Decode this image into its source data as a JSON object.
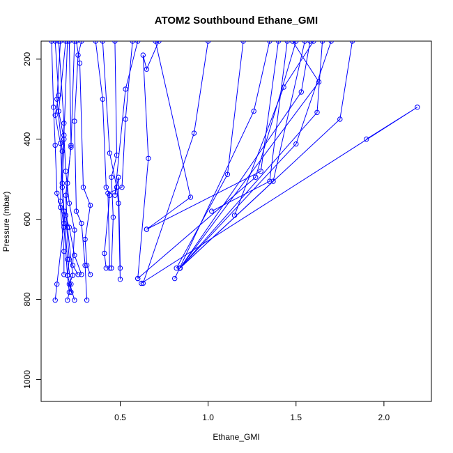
{
  "chart_data": {
    "type": "line",
    "title": "ATOM2 Southbound Ethane_GMI",
    "xlabel": "Ethane_GMI",
    "ylabel": "Pressure (mbar)",
    "xlim": [
      0.05,
      2.27
    ],
    "ylim": [
      1055,
      155
    ],
    "y_reversed": true,
    "x_ticks": [
      0.5,
      1.0,
      1.5,
      2.0
    ],
    "x_tick_labels": [
      "0.5",
      "1.0",
      "1.5",
      "2.0"
    ],
    "y_ticks": [
      200,
      400,
      600,
      800,
      1000
    ],
    "y_tick_labels": [
      "200",
      "400",
      "600",
      "800",
      "1000"
    ],
    "grid": false,
    "legend": "none",
    "color": "#0000ff",
    "series": [
      {
        "x": [
          0.13,
          0.14,
          0.18,
          0.16,
          0.13,
          0.15,
          0.13
        ],
        "y": [
          802,
          762,
          610,
          410,
          340,
          290,
          155
        ]
      },
      {
        "x": [
          0.2,
          0.22,
          0.2,
          0.17,
          0.18,
          0.15,
          0.19
        ],
        "y": [
          802,
          762,
          700,
          520,
          400,
          330,
          155
        ]
      },
      {
        "x": [
          0.24,
          0.2,
          0.18,
          0.16,
          0.17,
          0.14,
          0.16
        ],
        "y": [
          802,
          740,
          620,
          555,
          430,
          300,
          155
        ]
      },
      {
        "x": [
          0.31,
          0.3,
          0.28,
          0.25,
          0.24,
          0.26,
          0.28
        ],
        "y": [
          802,
          715,
          610,
          580,
          355,
          190,
          155
        ]
      },
      {
        "x": [
          0.21,
          0.2,
          0.21,
          0.19,
          0.2,
          0.22,
          0.21
        ],
        "y": [
          782,
          740,
          700,
          590,
          510,
          415,
          155
        ]
      },
      {
        "x": [
          0.22,
          0.21,
          0.23,
          0.2,
          0.19,
          0.22,
          0.24
        ],
        "y": [
          782,
          762,
          740,
          620,
          540,
          420,
          155
        ]
      },
      {
        "x": [
          0.26,
          0.23,
          0.24,
          0.21,
          0.19,
          0.18,
          0.2
        ],
        "y": [
          738,
          715,
          627,
          560,
          480,
          390,
          155
        ]
      },
      {
        "x": [
          0.33,
          0.31,
          0.3,
          0.33,
          0.29,
          0.27,
          0.25
        ],
        "y": [
          738,
          715,
          650,
          565,
          520,
          210,
          155
        ]
      },
      {
        "x": [
          0.28,
          0.24,
          0.21,
          0.18,
          0.17,
          0.18,
          0.15
        ],
        "y": [
          738,
          690,
          620,
          580,
          510,
          360,
          155
        ]
      },
      {
        "x": [
          0.18,
          0.18,
          0.16,
          0.14,
          0.13,
          0.12,
          0.11
        ],
        "y": [
          738,
          680,
          570,
          535,
          415,
          320,
          155
        ]
      },
      {
        "x": [
          0.42,
          0.41,
          0.44,
          0.42,
          0.4,
          0.36
        ],
        "y": [
          722,
          685,
          540,
          520,
          300,
          155
        ]
      },
      {
        "x": [
          0.45,
          0.46,
          0.45,
          0.48,
          0.47
        ],
        "y": [
          722,
          595,
          495,
          440,
          155
        ]
      },
      {
        "x": [
          0.5,
          0.49,
          0.48,
          0.44,
          0.4
        ],
        "y": [
          750,
          560,
          520,
          435,
          155
        ]
      },
      {
        "x": [
          0.44,
          0.43,
          0.51,
          0.53,
          0.57
        ],
        "y": [
          722,
          535,
          520,
          350,
          155
        ]
      },
      {
        "x": [
          0.5,
          0.49,
          0.47,
          0.53,
          0.6
        ],
        "y": [
          722,
          495,
          540,
          275,
          155
        ]
      },
      {
        "x": [
          0.6,
          0.66,
          0.63,
          0.65,
          0.72
        ],
        "y": [
          748,
          448,
          190,
          225,
          155
        ]
      },
      {
        "x": [
          0.65,
          0.9,
          0.7
        ],
        "y": [
          625,
          545,
          155
        ]
      },
      {
        "x": [
          0.63,
          0.92,
          1.0
        ],
        "y": [
          760,
          385,
          155
        ]
      },
      {
        "x": [
          0.82,
          1.11,
          1.2
        ],
        "y": [
          722,
          488,
          155
        ]
      },
      {
        "x": [
          0.81,
          1.26,
          1.35
        ],
        "y": [
          748,
          330,
          155
        ]
      },
      {
        "x": [
          1.02,
          1.35,
          1.45
        ],
        "y": [
          580,
          505,
          155
        ]
      },
      {
        "x": [
          0.84,
          1.37,
          1.55
        ],
        "y": [
          722,
          505,
          155
        ]
      },
      {
        "x": [
          1.15,
          1.43,
          1.6
        ],
        "y": [
          590,
          270,
          155
        ]
      },
      {
        "x": [
          0.84,
          1.5,
          1.7
        ],
        "y": [
          722,
          412,
          155
        ]
      },
      {
        "x": [
          0.84,
          1.53,
          1.58
        ],
        "y": [
          722,
          282,
          155
        ]
      },
      {
        "x": [
          0.84,
          1.62,
          1.65
        ],
        "y": [
          722,
          333,
          155
        ]
      },
      {
        "x": [
          0.84,
          1.63,
          1.48
        ],
        "y": [
          722,
          257,
          155
        ]
      },
      {
        "x": [
          0.84,
          1.75,
          1.82
        ],
        "y": [
          722,
          350,
          155
        ]
      },
      {
        "x": [
          0.6,
          1.27,
          1.5
        ],
        "y": [
          748,
          495,
          155
        ]
      },
      {
        "x": [
          0.62,
          2.19,
          1.9
        ],
        "y": [
          760,
          320,
          400
        ]
      },
      {
        "x": [
          0.65,
          1.3,
          1.4
        ],
        "y": [
          625,
          480,
          155
        ]
      }
    ]
  }
}
